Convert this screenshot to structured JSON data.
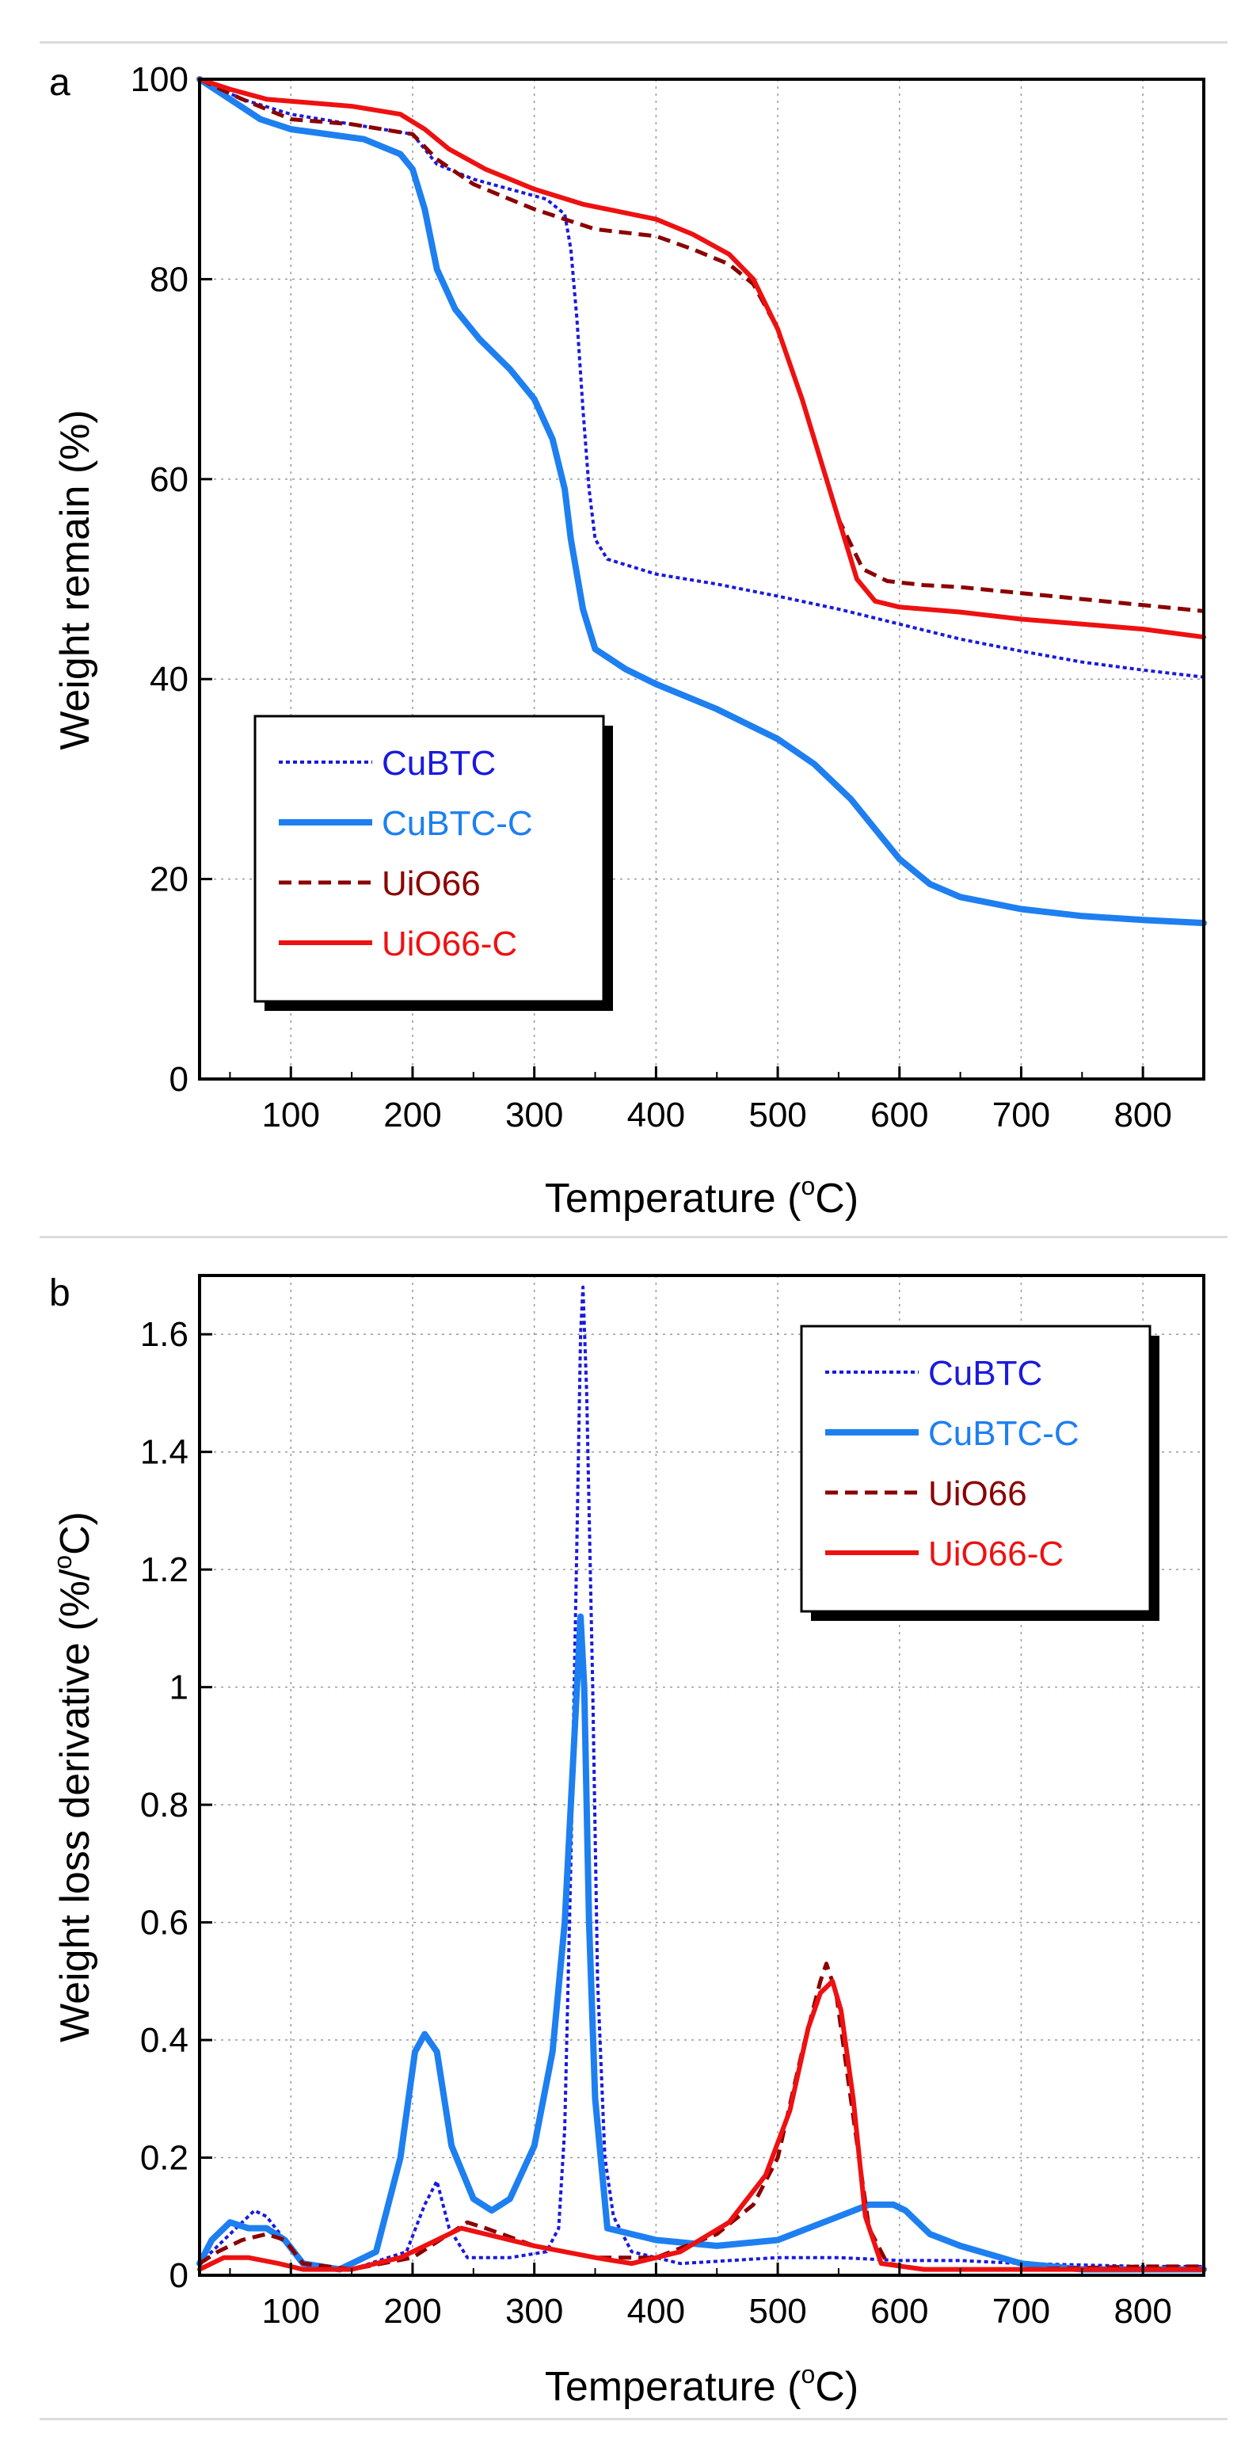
{
  "chart_data": [
    {
      "type": "line",
      "panel_label": "a",
      "xlabel": "Temperature (",
      "xlabel_sup": "o",
      "xlabel_end": "C)",
      "ylabel": "Weight remain (%)",
      "xlim": [
        25,
        850
      ],
      "ylim": [
        0,
        100
      ],
      "xticks": [
        100,
        200,
        300,
        400,
        500,
        600,
        700,
        800
      ],
      "yticks": [
        0,
        20,
        40,
        60,
        80,
        100
      ],
      "grid": true,
      "legend_position": "bottom-left",
      "series": [
        {
          "name": "CuBTC",
          "color": "#1a1adc",
          "dash": "dotted",
          "points": [
            [
              25,
              100
            ],
            [
              60,
              98
            ],
            [
              100,
              96.5
            ],
            [
              150,
              95.5
            ],
            [
              200,
              94.5
            ],
            [
              220,
              91.5
            ],
            [
              250,
              90
            ],
            [
              280,
              89
            ],
            [
              310,
              88
            ],
            [
              325,
              86.5
            ],
            [
              330,
              83
            ],
            [
              335,
              76
            ],
            [
              340,
              67
            ],
            [
              345,
              59
            ],
            [
              350,
              54
            ],
            [
              360,
              52
            ],
            [
              400,
              50.5
            ],
            [
              450,
              49.5
            ],
            [
              500,
              48.3
            ],
            [
              550,
              47
            ],
            [
              600,
              45.5
            ],
            [
              650,
              44
            ],
            [
              700,
              42.8
            ],
            [
              750,
              41.7
            ],
            [
              800,
              40.9
            ],
            [
              850,
              40.2
            ]
          ]
        },
        {
          "name": "CuBTC-C",
          "color": "#1e7ff0",
          "dash": "solid",
          "points": [
            [
              25,
              100
            ],
            [
              50,
              98
            ],
            [
              75,
              96
            ],
            [
              100,
              95
            ],
            [
              130,
              94.5
            ],
            [
              160,
              94
            ],
            [
              190,
              92.5
            ],
            [
              200,
              91
            ],
            [
              210,
              87
            ],
            [
              220,
              81
            ],
            [
              235,
              77
            ],
            [
              255,
              74
            ],
            [
              280,
              71
            ],
            [
              300,
              68
            ],
            [
              315,
              64
            ],
            [
              325,
              59
            ],
            [
              330,
              54
            ],
            [
              340,
              47
            ],
            [
              350,
              43
            ],
            [
              375,
              41
            ],
            [
              400,
              39.5
            ],
            [
              450,
              37
            ],
            [
              500,
              34
            ],
            [
              530,
              31.5
            ],
            [
              560,
              28
            ],
            [
              580,
              25
            ],
            [
              600,
              22
            ],
            [
              625,
              19.5
            ],
            [
              650,
              18.2
            ],
            [
              700,
              17
            ],
            [
              750,
              16.3
            ],
            [
              800,
              15.9
            ],
            [
              850,
              15.6
            ]
          ]
        },
        {
          "name": "UiO66",
          "color": "#8b0000",
          "dash": "dashed",
          "points": [
            [
              25,
              100
            ],
            [
              60,
              98
            ],
            [
              100,
              96
            ],
            [
              150,
              95.5
            ],
            [
              200,
              94.5
            ],
            [
              220,
              92
            ],
            [
              250,
              89.5
            ],
            [
              300,
              87
            ],
            [
              350,
              85
            ],
            [
              400,
              84.3
            ],
            [
              430,
              83
            ],
            [
              460,
              81.5
            ],
            [
              480,
              79.5
            ],
            [
              500,
              75
            ],
            [
              520,
              68
            ],
            [
              535,
              62
            ],
            [
              550,
              56
            ],
            [
              570,
              51
            ],
            [
              590,
              49.8
            ],
            [
              620,
              49.4
            ],
            [
              650,
              49.2
            ],
            [
              700,
              48.6
            ],
            [
              750,
              48
            ],
            [
              800,
              47.4
            ],
            [
              850,
              46.8
            ]
          ]
        },
        {
          "name": "UiO66-C",
          "color": "#ee1111",
          "dash": "solid",
          "points": [
            [
              25,
              100
            ],
            [
              50,
              99
            ],
            [
              80,
              98
            ],
            [
              150,
              97.3
            ],
            [
              190,
              96.5
            ],
            [
              210,
              95
            ],
            [
              230,
              93
            ],
            [
              260,
              91
            ],
            [
              300,
              89
            ],
            [
              340,
              87.5
            ],
            [
              400,
              86
            ],
            [
              430,
              84.5
            ],
            [
              460,
              82.5
            ],
            [
              480,
              80
            ],
            [
              500,
              75
            ],
            [
              520,
              68
            ],
            [
              535,
              62
            ],
            [
              550,
              56
            ],
            [
              565,
              50
            ],
            [
              580,
              47.8
            ],
            [
              600,
              47.2
            ],
            [
              650,
              46.7
            ],
            [
              700,
              46
            ],
            [
              750,
              45.5
            ],
            [
              800,
              45
            ],
            [
              850,
              44.2
            ]
          ]
        }
      ]
    },
    {
      "type": "line",
      "panel_label": "b",
      "xlabel": "Temperature (",
      "xlabel_sup": "o",
      "xlabel_end": "C)",
      "ylabel": "Weight loss derivative (%/",
      "ylabel_sup": "o",
      "ylabel_end": "C)",
      "xlim": [
        25,
        850
      ],
      "ylim": [
        0,
        1.7
      ],
      "xticks": [
        100,
        200,
        300,
        400,
        500,
        600,
        700,
        800
      ],
      "yticks": [
        0,
        0.2,
        0.4,
        0.6,
        0.8,
        1,
        1.2,
        1.4,
        1.6
      ],
      "ytick_labels": [
        "0",
        "0.2",
        "0.4",
        "0.6",
        "0.8",
        "1",
        "1.2",
        "1.4",
        "1.6"
      ],
      "grid": true,
      "legend_position": "top-right",
      "series": [
        {
          "name": "CuBTC",
          "color": "#1a1adc",
          "dash": "dotted",
          "points": [
            [
              25,
              0.02
            ],
            [
              40,
              0.05
            ],
            [
              55,
              0.08
            ],
            [
              70,
              0.11
            ],
            [
              80,
              0.1
            ],
            [
              95,
              0.06
            ],
            [
              110,
              0.02
            ],
            [
              150,
              0.01
            ],
            [
              195,
              0.04
            ],
            [
              210,
              0.12
            ],
            [
              220,
              0.16
            ],
            [
              230,
              0.08
            ],
            [
              245,
              0.03
            ],
            [
              280,
              0.03
            ],
            [
              310,
              0.04
            ],
            [
              320,
              0.08
            ],
            [
              325,
              0.25
            ],
            [
              330,
              0.7
            ],
            [
              335,
              1.25
            ],
            [
              338,
              1.6
            ],
            [
              340,
              1.68
            ],
            [
              343,
              1.5
            ],
            [
              348,
              1.0
            ],
            [
              352,
              0.5
            ],
            [
              358,
              0.2
            ],
            [
              365,
              0.1
            ],
            [
              380,
              0.04
            ],
            [
              420,
              0.02
            ],
            [
              500,
              0.03
            ],
            [
              550,
              0.03
            ],
            [
              600,
              0.025
            ],
            [
              650,
              0.025
            ],
            [
              700,
              0.02
            ],
            [
              800,
              0.015
            ],
            [
              850,
              0.015
            ]
          ]
        },
        {
          "name": "CuBTC-C",
          "color": "#1e7ff0",
          "dash": "solid",
          "points": [
            [
              25,
              0.02
            ],
            [
              35,
              0.06
            ],
            [
              50,
              0.09
            ],
            [
              65,
              0.08
            ],
            [
              80,
              0.08
            ],
            [
              95,
              0.06
            ],
            [
              110,
              0.02
            ],
            [
              140,
              0.01
            ],
            [
              170,
              0.04
            ],
            [
              190,
              0.2
            ],
            [
              202,
              0.38
            ],
            [
              210,
              0.41
            ],
            [
              220,
              0.38
            ],
            [
              232,
              0.22
            ],
            [
              250,
              0.13
            ],
            [
              265,
              0.11
            ],
            [
              280,
              0.13
            ],
            [
              300,
              0.22
            ],
            [
              315,
              0.38
            ],
            [
              325,
              0.6
            ],
            [
              335,
              1.0
            ],
            [
              338,
              1.12
            ],
            [
              341,
              1.0
            ],
            [
              345,
              0.6
            ],
            [
              350,
              0.3
            ],
            [
              360,
              0.08
            ],
            [
              400,
              0.06
            ],
            [
              450,
              0.05
            ],
            [
              500,
              0.06
            ],
            [
              550,
              0.1
            ],
            [
              575,
              0.12
            ],
            [
              595,
              0.12
            ],
            [
              605,
              0.11
            ],
            [
              625,
              0.07
            ],
            [
              650,
              0.05
            ],
            [
              700,
              0.02
            ],
            [
              750,
              0.01
            ],
            [
              850,
              0.01
            ]
          ]
        },
        {
          "name": "UiO66",
          "color": "#8b0000",
          "dash": "dashed",
          "points": [
            [
              25,
              0.02
            ],
            [
              40,
              0.04
            ],
            [
              60,
              0.06
            ],
            [
              80,
              0.07
            ],
            [
              95,
              0.06
            ],
            [
              110,
              0.02
            ],
            [
              150,
              0.01
            ],
            [
              200,
              0.03
            ],
            [
              230,
              0.07
            ],
            [
              245,
              0.09
            ],
            [
              260,
              0.08
            ],
            [
              300,
              0.05
            ],
            [
              350,
              0.03
            ],
            [
              400,
              0.03
            ],
            [
              450,
              0.07
            ],
            [
              480,
              0.12
            ],
            [
              500,
              0.2
            ],
            [
              520,
              0.38
            ],
            [
              535,
              0.5
            ],
            [
              540,
              0.53
            ],
            [
              548,
              0.48
            ],
            [
              560,
              0.3
            ],
            [
              575,
              0.08
            ],
            [
              590,
              0.02
            ],
            [
              620,
              0.01
            ],
            [
              700,
              0.01
            ],
            [
              800,
              0.015
            ],
            [
              850,
              0.015
            ]
          ]
        },
        {
          "name": "UiO66-C",
          "color": "#ee1111",
          "dash": "solid",
          "points": [
            [
              25,
              0.01
            ],
            [
              45,
              0.03
            ],
            [
              65,
              0.03
            ],
            [
              90,
              0.02
            ],
            [
              110,
              0.01
            ],
            [
              150,
              0.01
            ],
            [
              190,
              0.03
            ],
            [
              220,
              0.06
            ],
            [
              240,
              0.08
            ],
            [
              260,
              0.07
            ],
            [
              300,
              0.05
            ],
            [
              350,
              0.03
            ],
            [
              380,
              0.02
            ],
            [
              420,
              0.04
            ],
            [
              460,
              0.09
            ],
            [
              490,
              0.17
            ],
            [
              510,
              0.28
            ],
            [
              525,
              0.42
            ],
            [
              535,
              0.48
            ],
            [
              545,
              0.5
            ],
            [
              552,
              0.45
            ],
            [
              562,
              0.3
            ],
            [
              572,
              0.1
            ],
            [
              585,
              0.02
            ],
            [
              620,
              0.01
            ],
            [
              700,
              0.01
            ],
            [
              850,
              0.01
            ]
          ]
        }
      ]
    }
  ]
}
